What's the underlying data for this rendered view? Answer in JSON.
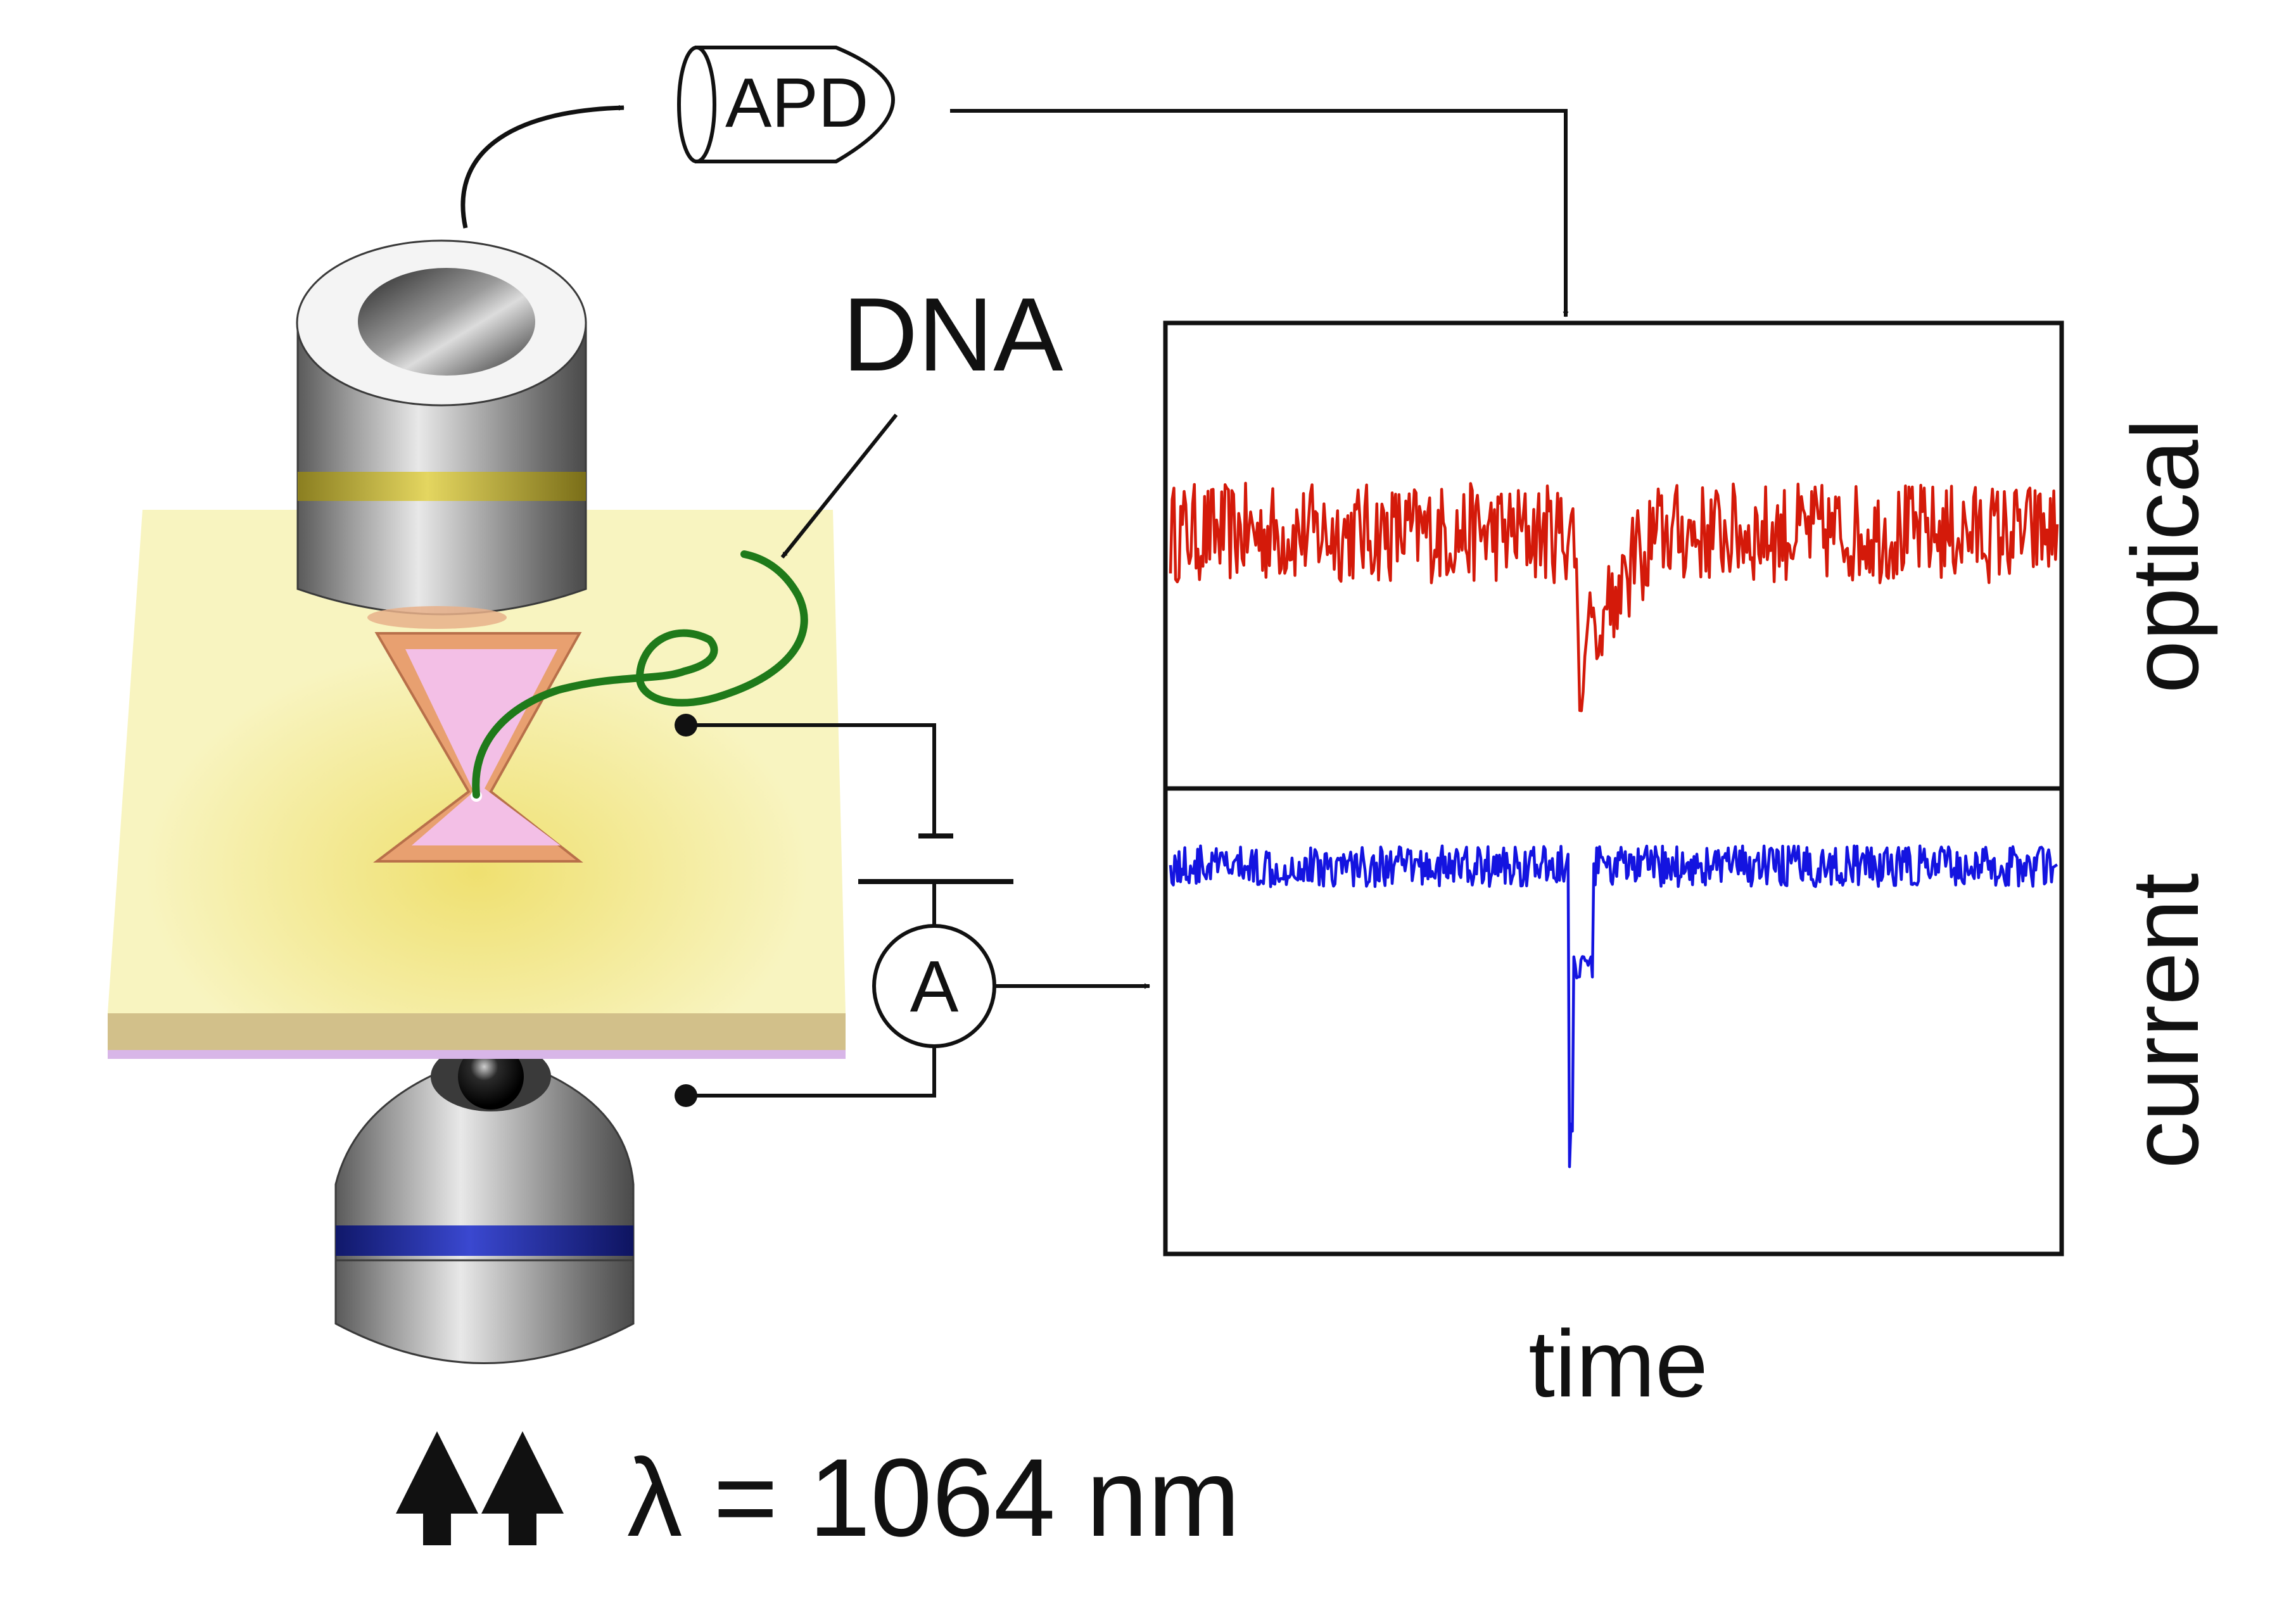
{
  "labels": {
    "apd": "APD",
    "dna": "DNA",
    "ammeter": "A",
    "optical": "optical",
    "current": "current",
    "time": "time",
    "wavelength": "λ = 1064 nm"
  },
  "colors": {
    "optical_trace": "#d41a0a",
    "current_trace": "#1414e0",
    "dna_strand": "#1f7a1a",
    "membrane": "#f6f0b0",
    "membrane_edge": "#cbb98a",
    "pore_fill": "#f2b8e0",
    "pore_rim": "#f0a070",
    "top_objective_band": "#c8b840",
    "bottom_objective_band": "#2030a8",
    "frame": "#111111"
  },
  "chart_data": [
    {
      "type": "line",
      "panel": "optical",
      "ylabel": "optical",
      "xlabel": "",
      "baseline": 0.55,
      "noise": 0.11,
      "event": {
        "start": 0.457,
        "min_at": 0.462,
        "end": 0.472,
        "depth": 0.85
      },
      "recovery": {
        "start": 0.472,
        "end": 0.55,
        "level": 0.35
      },
      "color": "#d41a0a"
    },
    {
      "type": "line",
      "panel": "current",
      "ylabel": "current",
      "xlabel": "time",
      "baseline": 0.84,
      "noise": 0.045,
      "event": {
        "start": 0.449,
        "min_at": 0.454,
        "plateau_end": 0.476,
        "plateau_level": 0.62,
        "depth": 0.91
      },
      "color": "#1414e0"
    }
  ]
}
